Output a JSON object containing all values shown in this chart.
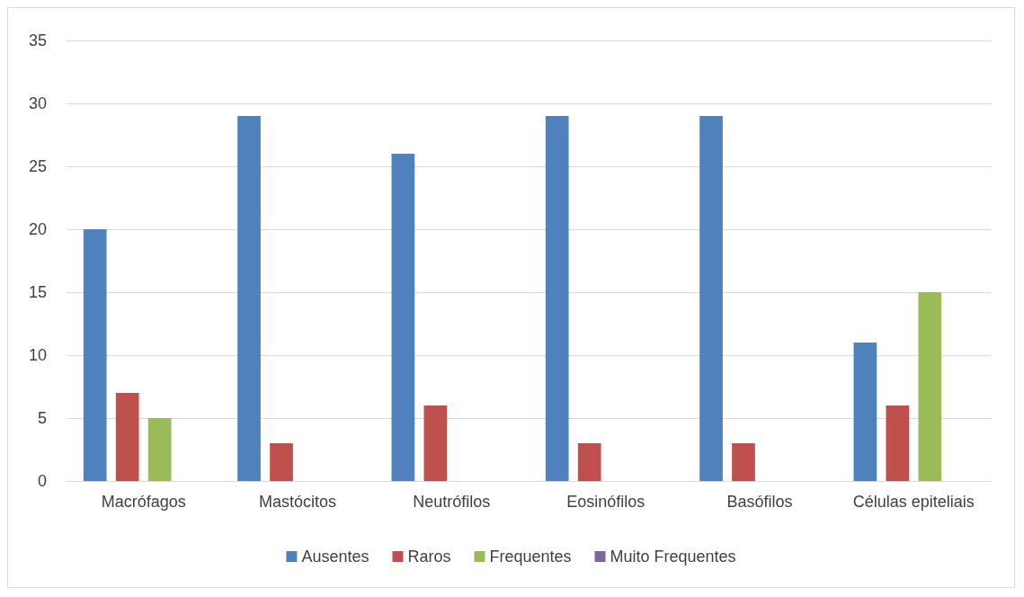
{
  "chart_data": {
    "type": "bar",
    "categories": [
      "Macrófagos",
      "Mastócitos",
      "Neutrófilos",
      "Eosinófilos",
      "Basófilos",
      "Células epiteliais"
    ],
    "series": [
      {
        "name": "Ausentes",
        "color": "#4f81bd",
        "values": [
          20,
          29,
          26,
          29,
          29,
          11
        ]
      },
      {
        "name": "Raros",
        "color": "#c0504d",
        "values": [
          7,
          3,
          6,
          3,
          3,
          6
        ]
      },
      {
        "name": "Frequentes",
        "color": "#9bbb59",
        "values": [
          5,
          0,
          0,
          0,
          0,
          15
        ]
      },
      {
        "name": "Muito Frequentes",
        "color": "#8064a2",
        "values": [
          0,
          0,
          0,
          0,
          0,
          0
        ]
      }
    ],
    "ylim": [
      0,
      35
    ],
    "yticks": [
      0,
      5,
      10,
      15,
      20,
      25,
      30,
      35
    ],
    "grid": "y",
    "legend": "bottom"
  }
}
